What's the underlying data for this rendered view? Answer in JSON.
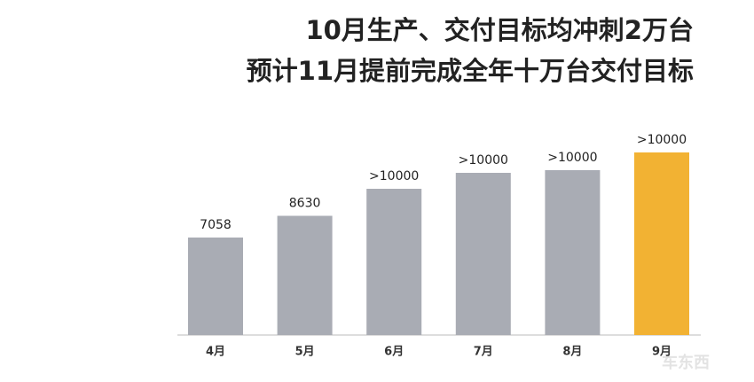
{
  "chart_data": {
    "type": "bar",
    "title": [
      "10月生产、交付目标均冲刺2万台",
      "预计11月提前完成全年十万台交付目标"
    ],
    "categories": [
      "4月",
      "5月",
      "6月",
      "7月",
      "8月",
      "9月"
    ],
    "values": [
      7058,
      8630,
      10587,
      11742,
      11935,
      13218
    ],
    "value_labels": [
      "7058",
      "8630",
      ">10000",
      ">10000",
      ">10000",
      ">10000"
    ],
    "colors": [
      "#a9acb4",
      "#a9acb4",
      "#a9acb4",
      "#a9acb4",
      "#a9acb4",
      "#f2b233"
    ],
    "watermark": "车东西"
  }
}
